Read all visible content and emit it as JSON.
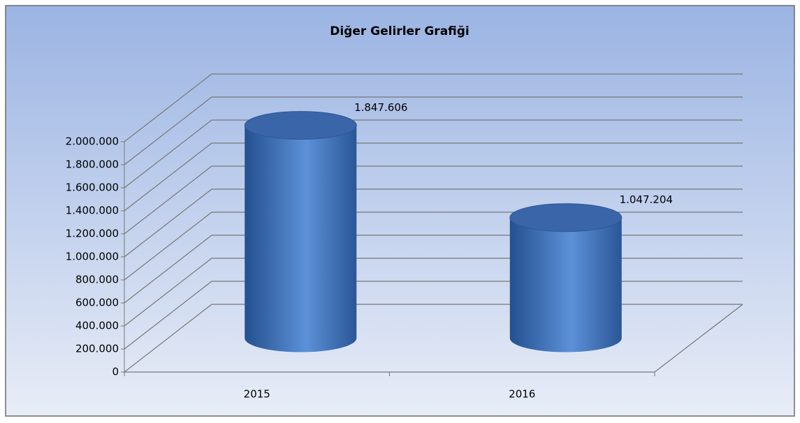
{
  "chart_data": {
    "type": "bar3d",
    "title": "Diğer Gelirler Grafiği",
    "categories": [
      "2015",
      "2016"
    ],
    "values": [
      1847606,
      1047204
    ],
    "value_labels": [
      "1.847.606",
      "1.047.204"
    ],
    "color": "#4a7cc4",
    "ylim": [
      0,
      2000000
    ],
    "yticks": [
      0,
      {
        "value": 200000,
        "label": "200.000"
      },
      {
        "value": 400000,
        "label": "400.000"
      },
      {
        "value": 600000,
        "label": "600.000"
      },
      {
        "value": 800000,
        "label": "800.000"
      },
      {
        "value": 1000000,
        "label": "1.000.000"
      },
      {
        "value": 1200000,
        "label": "1.200.000"
      },
      {
        "value": 1400000,
        "label": "1.400.000"
      },
      {
        "value": 1600000,
        "label": "1.600.000"
      },
      {
        "value": 1800000,
        "label": "1.800.000"
      },
      {
        "value": 2000000,
        "label": "2.000.000"
      }
    ],
    "grid": true
  }
}
